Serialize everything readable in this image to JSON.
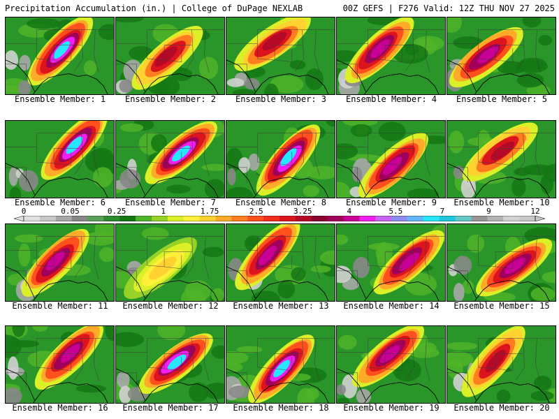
{
  "header": {
    "left_title": "Precipitation Accumulation (in.) | College of DuPage NEXLAB",
    "right_title": "00Z GEFS | F276 Valid: 12Z THU NOV 27 2025"
  },
  "colorbar": {
    "tick_labels": [
      "0",
      "0.05",
      "0.25",
      "1",
      "1.75",
      "2.5",
      "3.25",
      "4",
      "5.5",
      "7",
      "9",
      "12"
    ],
    "colors": [
      "#e0e0e0",
      "#c8c8c8",
      "#a8a8a8",
      "#888888",
      "#5aa05a",
      "#2e8b2e",
      "#147814",
      "#50b428",
      "#96d228",
      "#dcf028",
      "#fff03c",
      "#ffd232",
      "#ffaa28",
      "#ff7d1e",
      "#ff501e",
      "#f02d1e",
      "#dc141e",
      "#b40a28",
      "#8c0032",
      "#a0005a",
      "#c80096",
      "#f01ef0",
      "#c864f0",
      "#8c8cf0",
      "#64b4ff",
      "#28e6ff",
      "#1ec8dc",
      "#64c8c8",
      "#969696",
      "#b4b4b4",
      "#d2d2d2",
      "#c8c8c8"
    ]
  },
  "panels": [
    {
      "label": "Ensemble Member: 1",
      "max_category": "cyan"
    },
    {
      "label": "Ensemble Member: 2",
      "max_category": "red"
    },
    {
      "label": "Ensemble Member: 3",
      "max_category": "red"
    },
    {
      "label": "Ensemble Member: 4",
      "max_category": "magenta"
    },
    {
      "label": "Ensemble Member: 5",
      "max_category": "magenta"
    },
    {
      "label": "Ensemble Member: 6",
      "max_category": "cyan"
    },
    {
      "label": "Ensemble Member: 7",
      "max_category": "cyan"
    },
    {
      "label": "Ensemble Member: 8",
      "max_category": "cyan"
    },
    {
      "label": "Ensemble Member: 9",
      "max_category": "magenta"
    },
    {
      "label": "Ensemble Member: 10",
      "max_category": "red"
    },
    {
      "label": "Ensemble Member: 11",
      "max_category": "magenta"
    },
    {
      "label": "Ensemble Member: 12",
      "max_category": "yellow"
    },
    {
      "label": "Ensemble Member: 13",
      "max_category": "magenta"
    },
    {
      "label": "Ensemble Member: 14",
      "max_category": "magenta"
    },
    {
      "label": "Ensemble Member: 15",
      "max_category": "magenta"
    },
    {
      "label": "Ensemble Member: 16",
      "max_category": "magenta"
    },
    {
      "label": "Ensemble Member: 17",
      "max_category": "cyan"
    },
    {
      "label": "Ensemble Member: 18",
      "max_category": "cyan"
    },
    {
      "label": "Ensemble Member: 19",
      "max_category": "magenta"
    },
    {
      "label": "Ensemble Member: 20",
      "max_category": "red"
    }
  ]
}
